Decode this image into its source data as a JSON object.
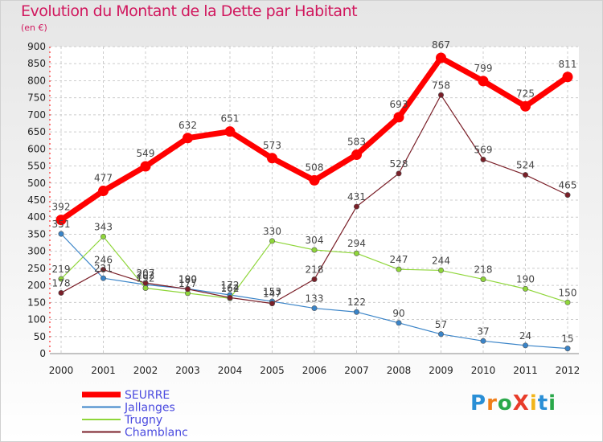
{
  "title": "Evolution du Montant de la Dette par Habitant",
  "unit": "(en €)",
  "logo": {
    "text": "ProXiti",
    "letters": [
      "P",
      "r",
      "o",
      "X",
      "i",
      "t",
      "i"
    ],
    "colors": [
      "#2a8fd6",
      "#f07f1a",
      "#2aa84a",
      "#e83c2a",
      "#f2b51a",
      "#2a8fd6",
      "#2aa84a"
    ]
  },
  "chart_data": {
    "type": "line",
    "x": [
      "2000",
      "2001",
      "2002",
      "2003",
      "2004",
      "2005",
      "2006",
      "2007",
      "2008",
      "2009",
      "2010",
      "2011",
      "2012"
    ],
    "yticks": [
      0,
      50,
      100,
      150,
      200,
      250,
      300,
      350,
      400,
      450,
      500,
      550,
      600,
      650,
      700,
      750,
      800,
      850,
      900
    ],
    "ylim": [
      0,
      900
    ],
    "grid": true,
    "legend_position": "bottom-left",
    "series": [
      {
        "name": "SEURRE",
        "color": "#ff0000",
        "values": [
          392,
          477,
          549,
          632,
          651,
          573,
          508,
          583,
          693,
          867,
          799,
          725,
          811
        ]
      },
      {
        "name": "Jallanges",
        "color": "#3a84c8",
        "values": [
          351,
          221,
          202,
          190,
          172,
          153,
          133,
          122,
          90,
          57,
          37,
          24,
          15
        ]
      },
      {
        "name": "Trugny",
        "color": "#8fd63a",
        "values": [
          219,
          343,
          192,
          177,
          162,
          330,
          304,
          294,
          247,
          244,
          218,
          190,
          150
        ]
      },
      {
        "name": "Chamblanc",
        "color": "#7a1f28",
        "values": [
          178,
          246,
          207,
          189,
          164,
          147,
          218,
          431,
          528,
          758,
          569,
          524,
          465
        ]
      }
    ]
  }
}
